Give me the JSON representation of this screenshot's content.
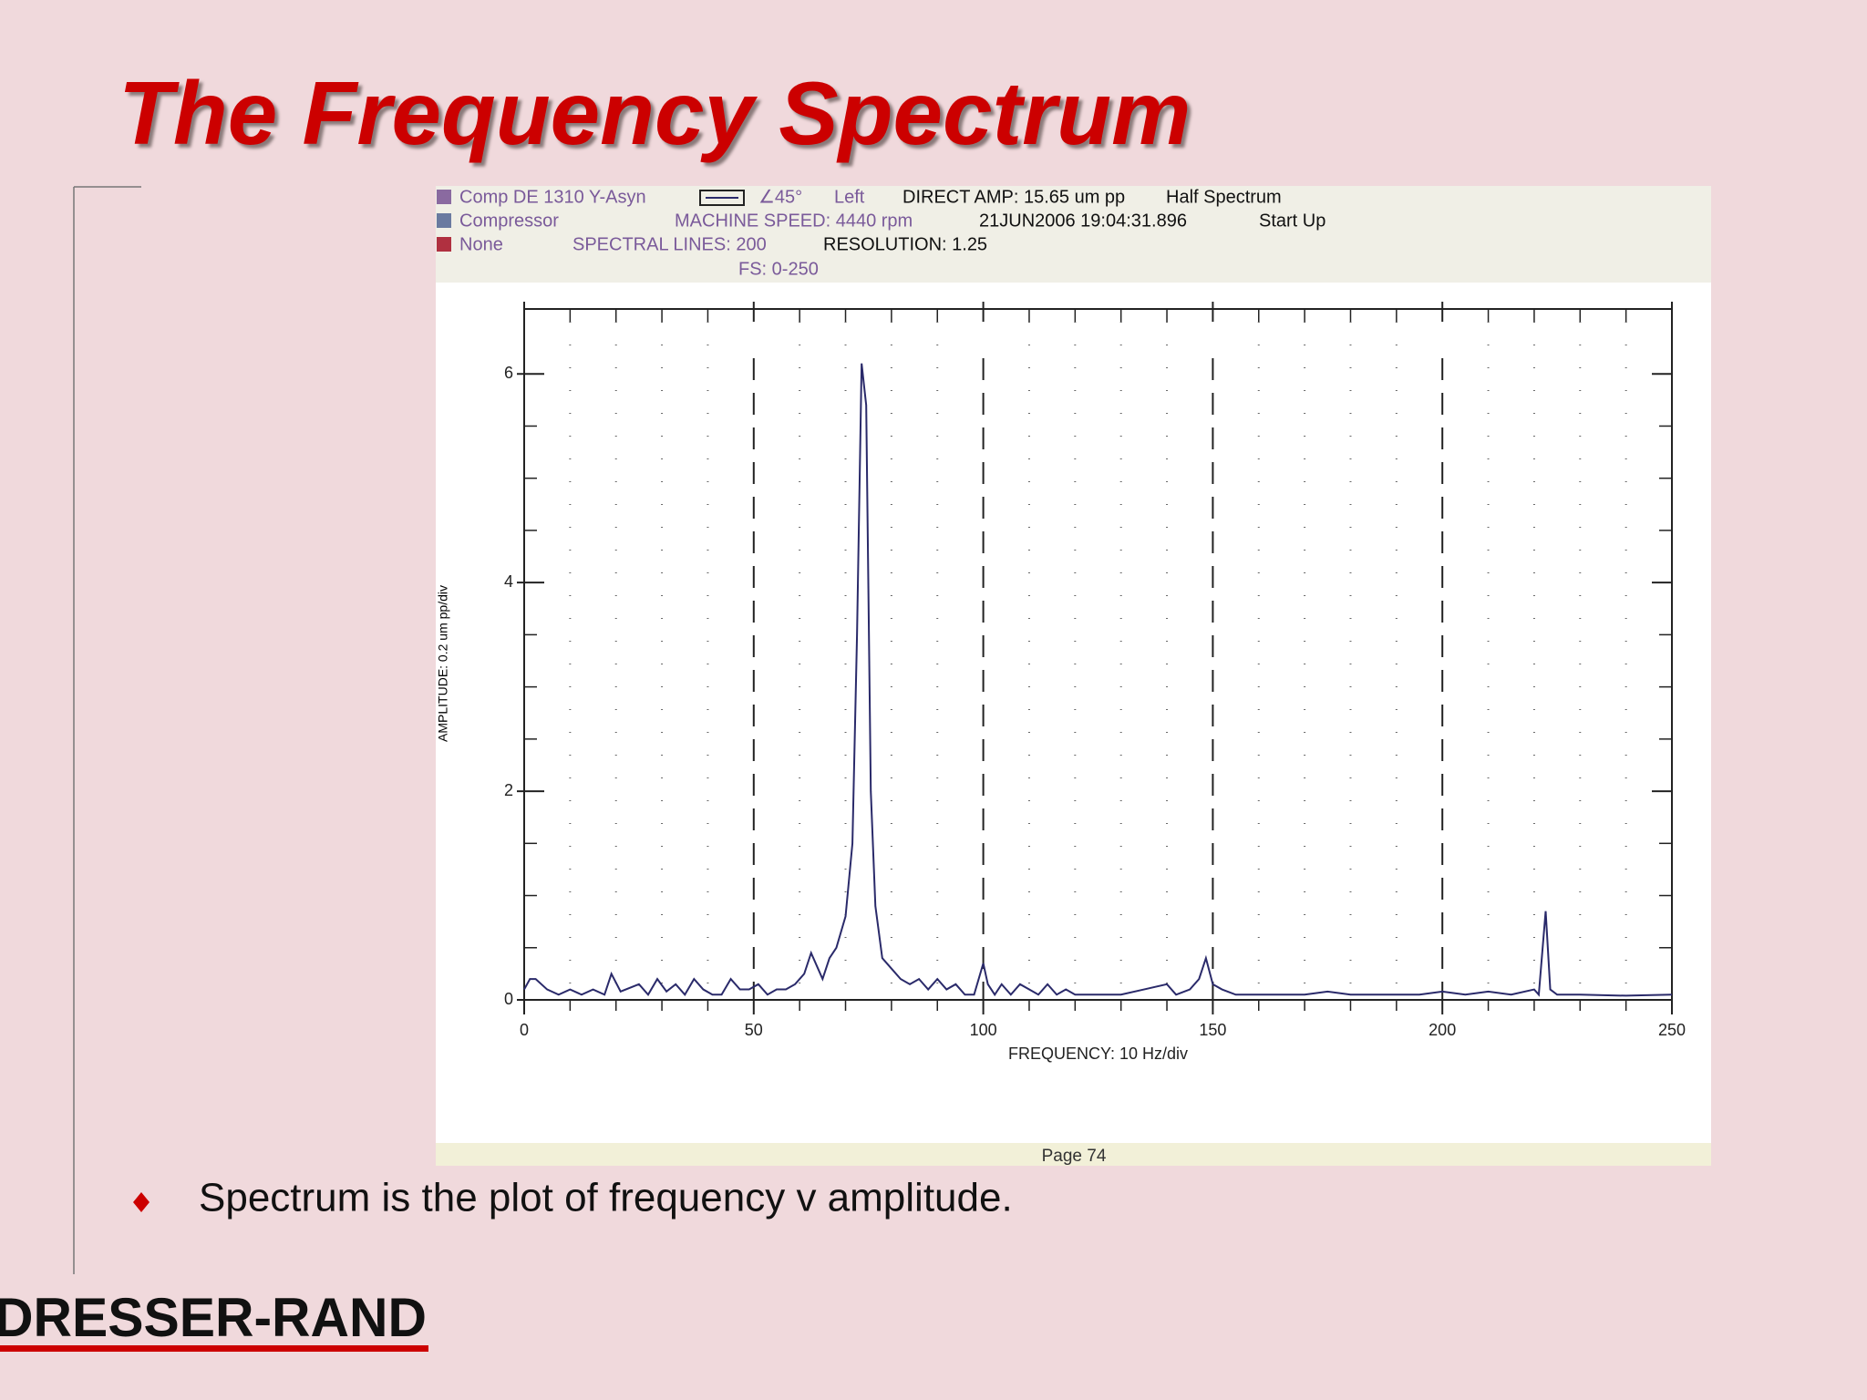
{
  "slide": {
    "title": "The Frequency Spectrum",
    "bullet": "Spectrum is the plot of frequency v amplitude.",
    "logo": "DRESSER-RAND"
  },
  "panel": {
    "header_rows": [
      [
        "Comp DE 1310 Y-Asyn",
        "∠45°",
        "Left",
        "DIRECT AMP: 15.65 um pp",
        "Half Spectrum"
      ],
      [
        "Compressor",
        "MACHINE SPEED: 4440 rpm",
        "21JUN2006 19:04:31.896",
        "Start Up"
      ],
      [
        "None",
        "SPECTRAL LINES: 200",
        "RESOLUTION: 1.25"
      ],
      [
        "FS: 0-250"
      ]
    ],
    "footer": "Page 74"
  },
  "chart_data": {
    "type": "line",
    "x_label": "FREQUENCY: 10 Hz/div",
    "y_label": "AMPLITUDE: 0.2 um pp/div",
    "x": [
      0,
      1.25,
      2.5,
      5,
      7.5,
      10,
      12.5,
      15,
      17.5,
      19,
      21,
      25,
      27,
      29,
      31,
      33,
      35,
      37,
      39,
      41,
      43,
      45,
      47,
      49,
      51,
      53,
      55,
      57,
      59,
      61,
      62.5,
      64,
      65,
      66.5,
      68,
      70,
      71.5,
      72.5,
      73.5,
      74.5,
      75.5,
      76.5,
      78,
      80,
      82,
      84,
      86,
      88,
      90,
      92,
      94,
      96,
      98,
      100,
      101,
      102.5,
      104,
      106,
      108,
      110,
      112,
      114,
      116,
      118,
      120,
      125,
      130,
      135,
      140,
      142,
      145,
      147,
      148.5,
      150,
      152,
      155,
      160,
      165,
      170,
      175,
      180,
      185,
      190,
      195,
      200,
      205,
      210,
      215,
      220,
      221,
      222.5,
      223.5,
      225,
      230,
      240,
      250
    ],
    "series": [
      {
        "name": "Comp DE 1310 Y-Asyn",
        "color": "#2a2a6a",
        "values": [
          0.1,
          0.2,
          0.2,
          0.1,
          0.05,
          0.1,
          0.05,
          0.1,
          0.05,
          0.25,
          0.08,
          0.15,
          0.05,
          0.2,
          0.08,
          0.15,
          0.05,
          0.2,
          0.1,
          0.05,
          0.05,
          0.2,
          0.1,
          0.1,
          0.15,
          0.05,
          0.1,
          0.1,
          0.15,
          0.25,
          0.45,
          0.3,
          0.2,
          0.4,
          0.5,
          0.8,
          1.5,
          3.5,
          6.1,
          5.7,
          2.0,
          0.9,
          0.4,
          0.3,
          0.2,
          0.15,
          0.2,
          0.1,
          0.2,
          0.1,
          0.15,
          0.05,
          0.05,
          0.35,
          0.15,
          0.05,
          0.15,
          0.05,
          0.15,
          0.1,
          0.05,
          0.15,
          0.05,
          0.1,
          0.05,
          0.05,
          0.05,
          0.1,
          0.15,
          0.05,
          0.1,
          0.2,
          0.4,
          0.15,
          0.1,
          0.05,
          0.05,
          0.05,
          0.05,
          0.08,
          0.05,
          0.05,
          0.05,
          0.05,
          0.08,
          0.05,
          0.08,
          0.05,
          0.1,
          0.05,
          0.85,
          0.1,
          0.05,
          0.05,
          0.04,
          0.05
        ]
      }
    ],
    "xlim": [
      0,
      250
    ],
    "ylim": [
      0,
      6.5
    ],
    "xticks": [
      0,
      50,
      100,
      150,
      200,
      250
    ],
    "yticks": [
      0,
      2,
      4,
      6
    ],
    "xminorticks": [
      10,
      20,
      30,
      40,
      60,
      70,
      80,
      90,
      110,
      120,
      130,
      140,
      160,
      170,
      180,
      190,
      210,
      220,
      230,
      240
    ],
    "yminorticks": [
      0.5,
      1,
      1.5,
      2.5,
      3,
      3.5,
      4.5,
      5,
      5.5
    ],
    "grid": true
  }
}
